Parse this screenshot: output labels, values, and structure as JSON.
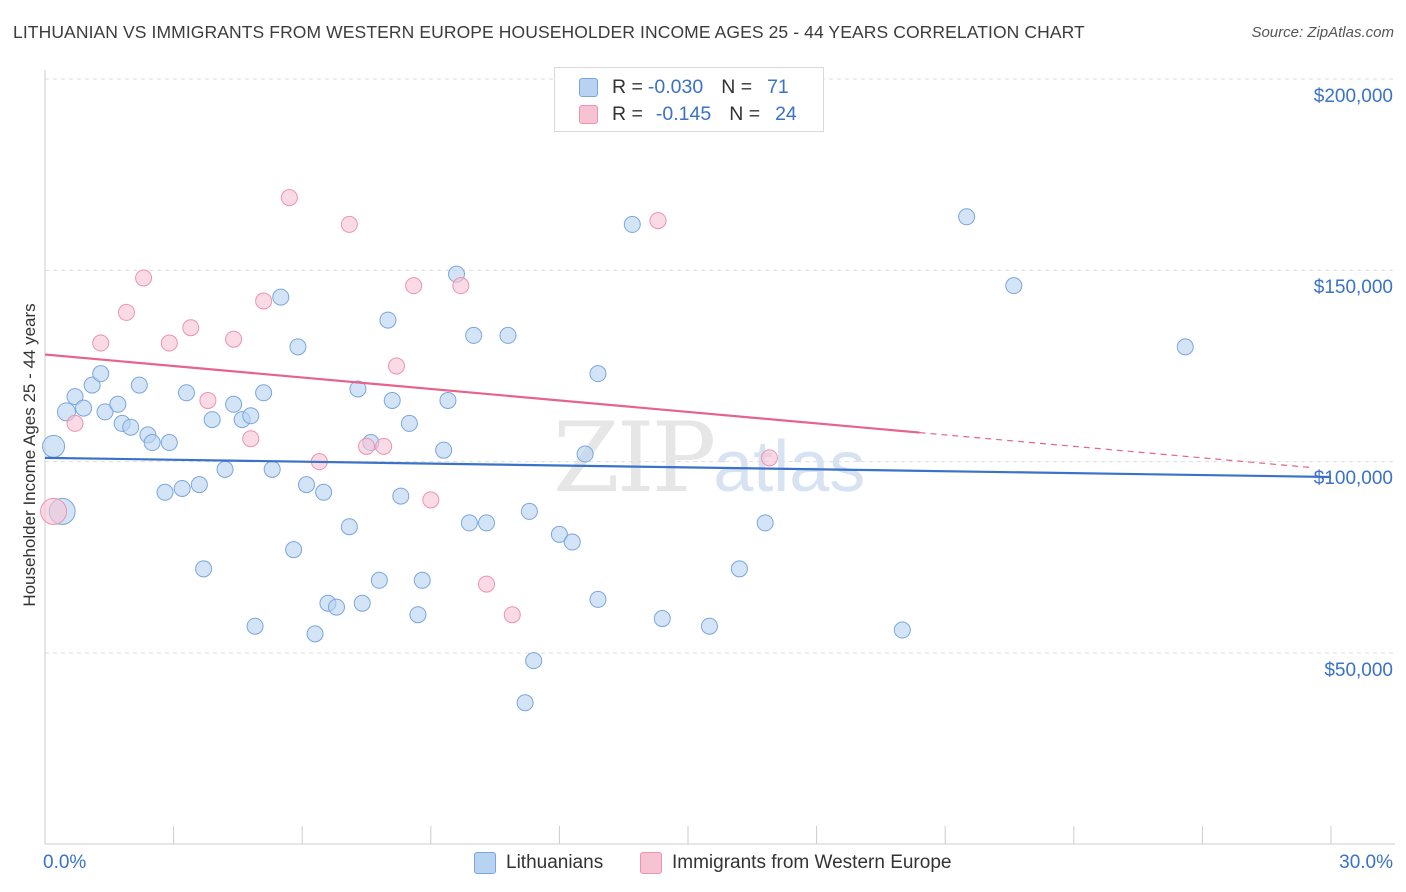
{
  "title": "LITHUANIAN VS IMMIGRANTS FROM WESTERN EUROPE HOUSEHOLDER INCOME AGES 25 - 44 YEARS CORRELATION CHART",
  "source": "Source: ZipAtlas.com",
  "watermark": {
    "zip": "ZIP",
    "atlas": "atlas"
  },
  "legend_top": {
    "rows": [
      {
        "r_label": "R =",
        "r_value": "-0.030",
        "n_label": "N =",
        "n_value": "71"
      },
      {
        "r_label": "R =",
        "r_value": "-0.145",
        "n_label": "N =",
        "n_value": "24"
      }
    ]
  },
  "colors": {
    "blue_fill": "#b8d2f2",
    "blue_stroke": "#7aa6de",
    "blue_line": "#3a72c8",
    "pink_fill": "#f7c3d3",
    "pink_stroke": "#ec93b0",
    "pink_line": "#e5648c",
    "grid": "#dddddd",
    "axis_text": "#3a72c8"
  },
  "chart_data": {
    "type": "scatter",
    "title": "LITHUANIAN VS IMMIGRANTS FROM WESTERN EUROPE HOUSEHOLDER INCOME AGES 25 - 44 YEARS CORRELATION CHART",
    "xlabel": "",
    "ylabel": "Householder Income Ages 25 - 44 years",
    "xlim": [
      0,
      30
    ],
    "ylim": [
      0,
      205000
    ],
    "x_tick_labels": [
      "0.0%",
      "30.0%"
    ],
    "y_ticks": [
      {
        "value": 50000,
        "label": "$50,000"
      },
      {
        "value": 100000,
        "label": "$100,000"
      },
      {
        "value": 150000,
        "label": "$150,000"
      },
      {
        "value": 200000,
        "label": "$200,000"
      }
    ],
    "series": [
      {
        "name": "Lithuanians",
        "color": "blue",
        "R": -0.03,
        "N": 71,
        "trend": {
          "x0": 0,
          "y0": 101000,
          "x1": 30,
          "y1": 96000,
          "dashed_from": null
        },
        "points": [
          [
            0.2,
            104000,
            22
          ],
          [
            0.4,
            87000,
            26
          ],
          [
            0.5,
            113000,
            18
          ],
          [
            0.7,
            117000,
            16
          ],
          [
            0.9,
            114000,
            16
          ],
          [
            1.1,
            120000,
            16
          ],
          [
            1.3,
            123000,
            16
          ],
          [
            1.4,
            113000,
            16
          ],
          [
            1.7,
            115000,
            16
          ],
          [
            1.8,
            110000,
            16
          ],
          [
            2.0,
            109000,
            16
          ],
          [
            2.2,
            120000,
            16
          ],
          [
            2.4,
            107000,
            16
          ],
          [
            2.5,
            105000,
            16
          ],
          [
            2.8,
            92000,
            16
          ],
          [
            2.9,
            105000,
            16
          ],
          [
            3.2,
            93000,
            16
          ],
          [
            3.3,
            118000,
            16
          ],
          [
            3.6,
            94000,
            16
          ],
          [
            3.7,
            72000,
            16
          ],
          [
            3.9,
            111000,
            16
          ],
          [
            4.2,
            98000,
            16
          ],
          [
            4.4,
            115000,
            16
          ],
          [
            4.6,
            111000,
            16
          ],
          [
            4.8,
            112000,
            16
          ],
          [
            4.9,
            57000,
            16
          ],
          [
            5.1,
            118000,
            16
          ],
          [
            5.3,
            98000,
            16
          ],
          [
            5.5,
            143000,
            16
          ],
          [
            5.8,
            77000,
            16
          ],
          [
            5.9,
            130000,
            16
          ],
          [
            6.1,
            94000,
            16
          ],
          [
            6.3,
            55000,
            16
          ],
          [
            6.5,
            92000,
            16
          ],
          [
            6.6,
            63000,
            16
          ],
          [
            6.8,
            62000,
            16
          ],
          [
            7.1,
            83000,
            16
          ],
          [
            7.3,
            119000,
            16
          ],
          [
            7.4,
            63000,
            16
          ],
          [
            7.6,
            105000,
            16
          ],
          [
            7.8,
            69000,
            16
          ],
          [
            8.0,
            137000,
            16
          ],
          [
            8.1,
            116000,
            16
          ],
          [
            8.3,
            91000,
            16
          ],
          [
            8.5,
            110000,
            16
          ],
          [
            8.7,
            60000,
            16
          ],
          [
            8.8,
            69000,
            16
          ],
          [
            9.3,
            103000,
            16
          ],
          [
            9.4,
            116000,
            16
          ],
          [
            9.6,
            149000,
            16
          ],
          [
            9.9,
            84000,
            16
          ],
          [
            10.0,
            133000,
            16
          ],
          [
            10.3,
            84000,
            16
          ],
          [
            10.8,
            133000,
            16
          ],
          [
            11.3,
            87000,
            16
          ],
          [
            11.4,
            48000,
            16
          ],
          [
            11.2,
            37000,
            16
          ],
          [
            12.0,
            81000,
            16
          ],
          [
            12.3,
            79000,
            16
          ],
          [
            12.6,
            102000,
            16
          ],
          [
            12.9,
            123000,
            16
          ],
          [
            12.9,
            64000,
            16
          ],
          [
            13.7,
            162000,
            16
          ],
          [
            14.4,
            59000,
            16
          ],
          [
            15.5,
            57000,
            16
          ],
          [
            16.2,
            72000,
            16
          ],
          [
            16.8,
            84000,
            16
          ],
          [
            20.0,
            56000,
            16
          ],
          [
            21.5,
            164000,
            16
          ],
          [
            22.6,
            146000,
            16
          ],
          [
            26.6,
            130000,
            16
          ]
        ]
      },
      {
        "name": "Immigrants from Western Europe",
        "color": "pink",
        "R": -0.145,
        "N": 24,
        "trend": {
          "x0": 0,
          "y0": 128000,
          "x1": 30,
          "y1": 98000,
          "dashed_from": 20.4
        },
        "points": [
          [
            0.2,
            87000,
            26
          ],
          [
            0.7,
            110000,
            16
          ],
          [
            1.3,
            131000,
            16
          ],
          [
            1.9,
            139000,
            16
          ],
          [
            2.3,
            148000,
            16
          ],
          [
            2.9,
            131000,
            16
          ],
          [
            3.4,
            135000,
            16
          ],
          [
            3.8,
            116000,
            16
          ],
          [
            4.4,
            132000,
            16
          ],
          [
            4.8,
            106000,
            16
          ],
          [
            5.1,
            142000,
            16
          ],
          [
            5.7,
            169000,
            16
          ],
          [
            6.4,
            100000,
            16
          ],
          [
            7.1,
            162000,
            16
          ],
          [
            7.5,
            104000,
            16
          ],
          [
            7.9,
            104000,
            16
          ],
          [
            8.2,
            125000,
            16
          ],
          [
            8.6,
            146000,
            16
          ],
          [
            9.0,
            90000,
            16
          ],
          [
            9.7,
            146000,
            16
          ],
          [
            10.3,
            68000,
            16
          ],
          [
            10.9,
            60000,
            16
          ],
          [
            14.3,
            163000,
            16
          ],
          [
            16.9,
            101000,
            16
          ]
        ]
      }
    ]
  },
  "bottom_legend": [
    {
      "label": "Lithuanians",
      "color": "blue"
    },
    {
      "label": "Immigrants from Western Europe",
      "color": "pink"
    }
  ]
}
